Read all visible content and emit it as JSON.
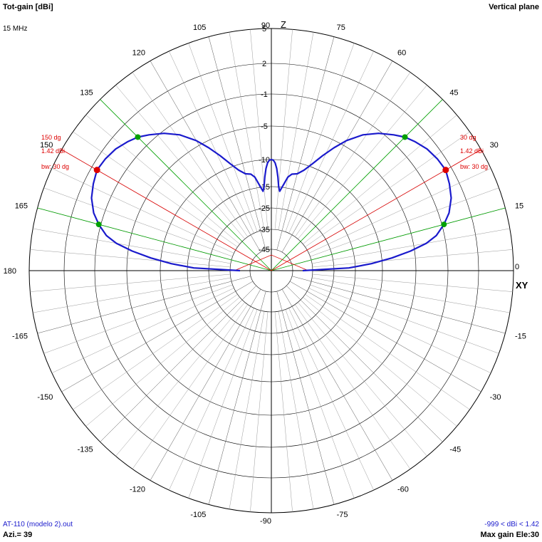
{
  "header": {
    "title": "Tot-gain [dBi]",
    "frequency": "15 MHz",
    "plane": "Vertical plane"
  },
  "footer": {
    "file": "AT-110 (modelo 2).out",
    "azimuth": "Azi.= 39",
    "range": "-999 < dBi < 1.42",
    "max_gain": "Max gain Ele:30"
  },
  "colors": {
    "pattern": "#1a1acc",
    "main_lobe": "#dd0000",
    "beamwidth": "#00a000",
    "grid": "#000000"
  },
  "chart_data": {
    "type": "polar",
    "title": "Tot-gain [dBi]",
    "angle_unit": "degrees",
    "angle_ticks": [
      90,
      75,
      60,
      45,
      30,
      15,
      0,
      -15,
      -30,
      -45,
      -60,
      -75,
      -90,
      -105,
      -120,
      -135,
      -150,
      -165,
      180,
      165,
      150,
      135,
      120,
      105
    ],
    "axis_labels": {
      "top": "Z",
      "right": "XY"
    },
    "radial_ticks": [
      "5",
      "2",
      "-1",
      "-5",
      "-10",
      "-15",
      "-25",
      "-35",
      "-45"
    ],
    "radial_tick_values": [
      5,
      2,
      -1,
      -5,
      -10,
      -15,
      -25,
      -35,
      -45
    ],
    "series": [
      {
        "elevation_deg": [
          0,
          2,
          4,
          6,
          8,
          10,
          12,
          15,
          18,
          22,
          26,
          30,
          34,
          38,
          42,
          45,
          48,
          52,
          56,
          60,
          63,
          66,
          69,
          72,
          75,
          78,
          80,
          82,
          84,
          85,
          86,
          87,
          88,
          89,
          90
        ],
        "gain_dbi": [
          -40,
          -18,
          -12,
          -8.5,
          -5.6,
          -3.4,
          -2,
          -0.8,
          0,
          0.7,
          1.1,
          1.42,
          1.3,
          1.05,
          0.6,
          0.2,
          -0.4,
          -1.3,
          -2.6,
          -4.3,
          -6,
          -7.8,
          -9.5,
          -11,
          -12,
          -12.3,
          -13,
          -14.5,
          -17,
          -15,
          -13.2,
          -11.6,
          -10.6,
          -10.1,
          -10
        ]
      }
    ],
    "max_gain_markers": [
      {
        "elevation": 30,
        "angle_label": "30 dg",
        "gain_label": "1.42 dBi",
        "bw_label": "bw: 30 dg"
      },
      {
        "elevation": 150,
        "angle_label": "150 dg",
        "gain_label": "1.42 dBi",
        "bw_label": "bw: 30 dg"
      }
    ],
    "beamwidth_edges": [
      15,
      45,
      135,
      165
    ]
  }
}
